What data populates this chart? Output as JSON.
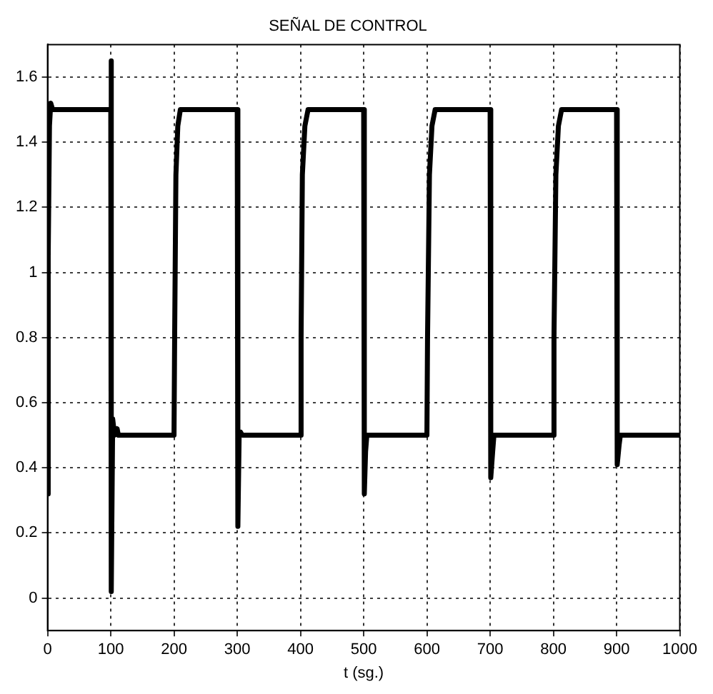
{
  "chart_data": {
    "type": "line",
    "title": "SEÑAL DE CONTROL",
    "xlabel": "t (sg.)",
    "x": [
      0,
      1,
      3,
      5,
      8,
      100,
      100.5,
      101,
      103,
      106,
      110,
      112,
      200,
      201,
      203,
      206,
      210,
      300,
      301,
      303,
      305,
      308,
      400,
      401,
      403,
      407,
      412,
      500,
      501,
      503,
      505,
      600,
      601,
      604,
      608,
      613,
      700,
      701,
      704,
      706,
      800,
      801,
      804,
      808,
      813,
      900,
      901,
      904,
      906,
      1000
    ],
    "series": [
      {
        "color": "#000000",
        "values": [
          0.32,
          1.05,
          1.45,
          1.52,
          1.5,
          1.5,
          1.65,
          0.02,
          0.55,
          0.5,
          0.52,
          0.5,
          0.5,
          0.8,
          1.3,
          1.45,
          1.5,
          1.5,
          0.22,
          0.5,
          0.51,
          0.5,
          0.5,
          0.8,
          1.3,
          1.45,
          1.5,
          1.5,
          0.32,
          0.45,
          0.5,
          0.5,
          0.8,
          1.3,
          1.45,
          1.5,
          1.5,
          0.37,
          0.45,
          0.5,
          0.5,
          0.8,
          1.3,
          1.45,
          1.5,
          1.5,
          0.41,
          0.47,
          0.5,
          0.5
        ]
      }
    ],
    "xlim": [
      0,
      1000
    ],
    "xticks": [
      0,
      100,
      200,
      300,
      400,
      500,
      600,
      700,
      800,
      900,
      1000
    ],
    "ylim": [
      -0.1,
      1.7
    ],
    "yticks": [
      0,
      0.2,
      0.4,
      0.6,
      0.8,
      1,
      1.2,
      1.4,
      1.6
    ],
    "grid": true,
    "legend": false,
    "marker": "none",
    "line_style": "solid"
  }
}
